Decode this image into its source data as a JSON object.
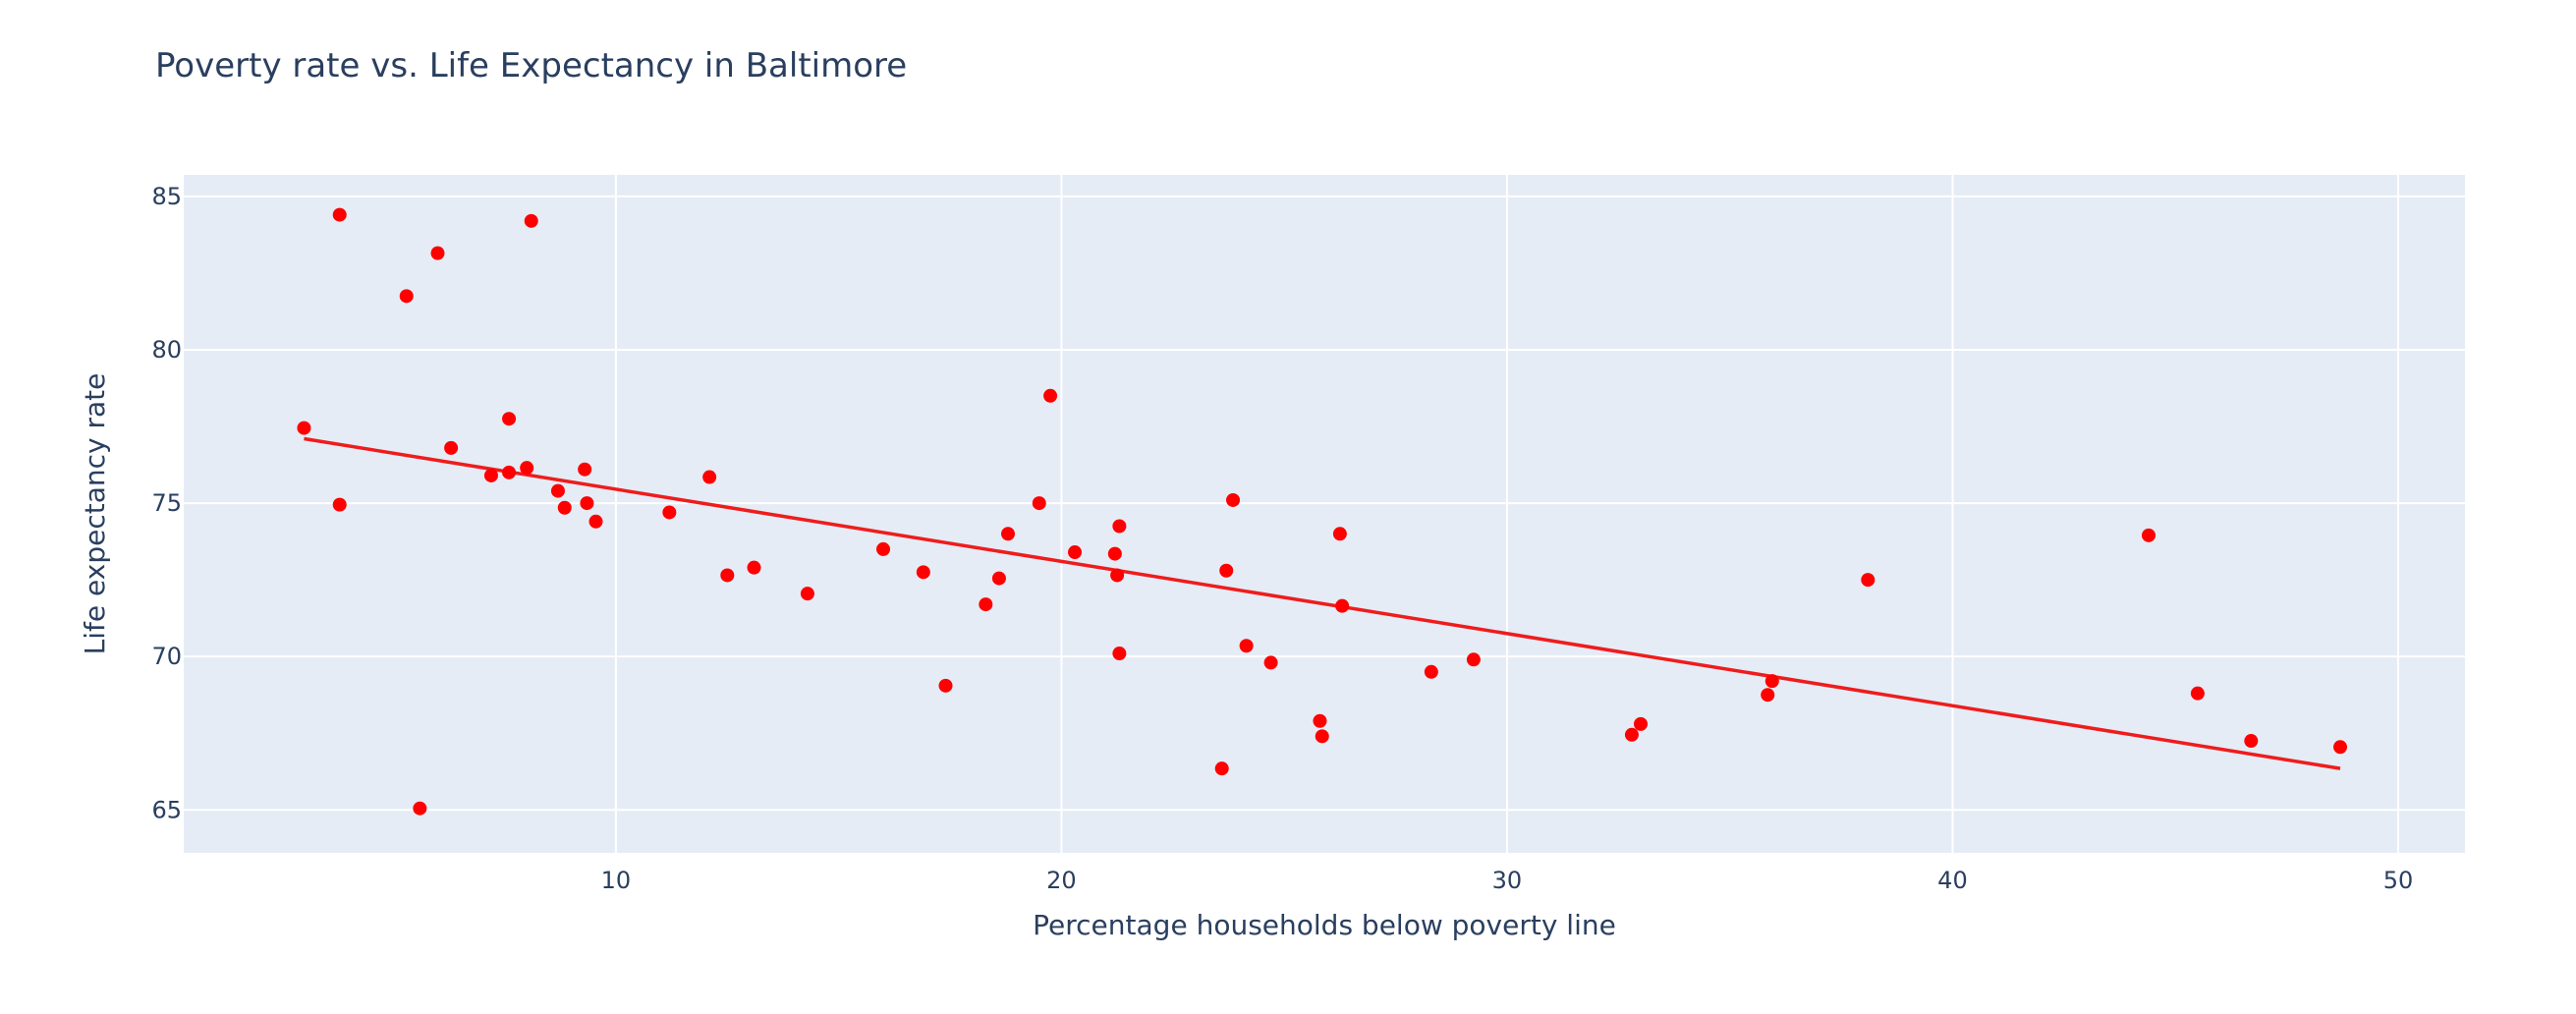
{
  "chart_data": {
    "type": "scatter",
    "title": "Poverty rate vs. Life Expectancy in Baltimore",
    "xlabel": "Percentage households below poverty line",
    "ylabel": "Life expectancy rate",
    "xlim": [
      0.3,
      51.5
    ],
    "ylim": [
      63.6,
      85.7
    ],
    "xticks": [
      10,
      20,
      30,
      40,
      50
    ],
    "yticks": [
      65,
      70,
      75,
      80,
      85
    ],
    "grid": true,
    "legend": "none",
    "marker_color": "#ff0000",
    "trend_color": "#ef1c1c",
    "plot_background": "#e5ecf6",
    "grid_color": "#ffffff",
    "text_color": "#2a3f5f",
    "points": [
      {
        "x": 3.0,
        "y": 77.45
      },
      {
        "x": 3.8,
        "y": 84.4
      },
      {
        "x": 3.8,
        "y": 74.95
      },
      {
        "x": 5.3,
        "y": 81.75
      },
      {
        "x": 5.6,
        "y": 65.05
      },
      {
        "x": 6.0,
        "y": 83.15
      },
      {
        "x": 6.3,
        "y": 76.8
      },
      {
        "x": 7.2,
        "y": 75.9
      },
      {
        "x": 7.6,
        "y": 77.75
      },
      {
        "x": 7.6,
        "y": 76.0
      },
      {
        "x": 8.0,
        "y": 76.15
      },
      {
        "x": 8.1,
        "y": 84.2
      },
      {
        "x": 8.7,
        "y": 75.4
      },
      {
        "x": 8.85,
        "y": 74.85
      },
      {
        "x": 9.3,
        "y": 76.1
      },
      {
        "x": 9.35,
        "y": 75.0
      },
      {
        "x": 9.55,
        "y": 74.4
      },
      {
        "x": 11.2,
        "y": 74.7
      },
      {
        "x": 12.1,
        "y": 75.85
      },
      {
        "x": 12.5,
        "y": 72.65
      },
      {
        "x": 13.1,
        "y": 72.9
      },
      {
        "x": 14.3,
        "y": 72.05
      },
      {
        "x": 16.0,
        "y": 73.5
      },
      {
        "x": 16.9,
        "y": 72.75
      },
      {
        "x": 17.4,
        "y": 69.05
      },
      {
        "x": 18.3,
        "y": 71.7
      },
      {
        "x": 18.6,
        "y": 72.55
      },
      {
        "x": 18.8,
        "y": 74.0
      },
      {
        "x": 19.5,
        "y": 75.0
      },
      {
        "x": 19.75,
        "y": 78.5
      },
      {
        "x": 20.3,
        "y": 73.4
      },
      {
        "x": 21.2,
        "y": 73.35
      },
      {
        "x": 21.25,
        "y": 72.65
      },
      {
        "x": 21.3,
        "y": 74.25
      },
      {
        "x": 21.3,
        "y": 70.1
      },
      {
        "x": 23.6,
        "y": 66.35
      },
      {
        "x": 23.7,
        "y": 72.8
      },
      {
        "x": 23.85,
        "y": 75.1
      },
      {
        "x": 24.15,
        "y": 70.35
      },
      {
        "x": 24.7,
        "y": 69.8
      },
      {
        "x": 25.8,
        "y": 67.9
      },
      {
        "x": 25.85,
        "y": 67.4
      },
      {
        "x": 26.25,
        "y": 74.0
      },
      {
        "x": 26.3,
        "y": 71.65
      },
      {
        "x": 28.3,
        "y": 69.5
      },
      {
        "x": 29.25,
        "y": 69.9
      },
      {
        "x": 32.8,
        "y": 67.45
      },
      {
        "x": 33.0,
        "y": 67.8
      },
      {
        "x": 35.85,
        "y": 68.75
      },
      {
        "x": 35.95,
        "y": 69.2
      },
      {
        "x": 38.1,
        "y": 72.5
      },
      {
        "x": 44.4,
        "y": 73.95
      },
      {
        "x": 45.5,
        "y": 68.8
      },
      {
        "x": 46.7,
        "y": 67.25
      },
      {
        "x": 48.7,
        "y": 67.05
      }
    ],
    "trendline": [
      {
        "x": 3.0,
        "y": 77.1
      },
      {
        "x": 48.7,
        "y": 66.35
      }
    ]
  }
}
